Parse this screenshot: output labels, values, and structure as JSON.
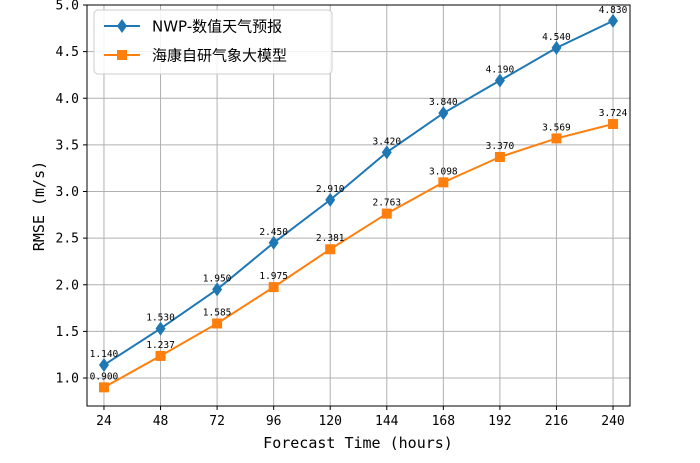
{
  "chart_data": {
    "type": "line",
    "title": "",
    "xlabel": "Forecast Time (hours)",
    "ylabel": "RMSE (m/s)",
    "x": [
      24,
      48,
      72,
      96,
      120,
      144,
      168,
      192,
      216,
      240
    ],
    "x_tick_labels": [
      "24",
      "48",
      "72",
      "96",
      "120",
      "144",
      "168",
      "192",
      "216",
      "240"
    ],
    "ylim": [
      0.7,
      5.0
    ],
    "y_ticks": [
      1.0,
      1.5,
      2.0,
      2.5,
      3.0,
      3.5,
      4.0,
      4.5,
      5.0
    ],
    "y_tick_labels": [
      "1.0",
      "1.5",
      "2.0",
      "2.5",
      "3.0",
      "3.5",
      "4.0",
      "4.5",
      "5.0"
    ],
    "grid": true,
    "legend_position": "top-left",
    "series": [
      {
        "name": "NWP-数值天气预报",
        "color": "#1f77b4",
        "marker": "diamond",
        "values": [
          1.14,
          1.53,
          1.95,
          2.45,
          2.91,
          3.42,
          3.84,
          4.19,
          4.54,
          4.83
        ],
        "labels": [
          "1.140",
          "1.530",
          "1.950",
          "2.450",
          "2.910",
          "3.420",
          "3.840",
          "4.190",
          "4.540",
          "4.830"
        ]
      },
      {
        "name": "海康自研气象大模型",
        "color": "#ff7f0e",
        "marker": "square",
        "values": [
          0.9,
          1.237,
          1.585,
          1.975,
          2.381,
          2.763,
          3.098,
          3.37,
          3.569,
          3.724
        ],
        "labels": [
          "0.900",
          "1.237",
          "1.585",
          "1.975",
          "2.381",
          "2.763",
          "3.098",
          "3.370",
          "3.569",
          "3.724"
        ]
      }
    ]
  }
}
